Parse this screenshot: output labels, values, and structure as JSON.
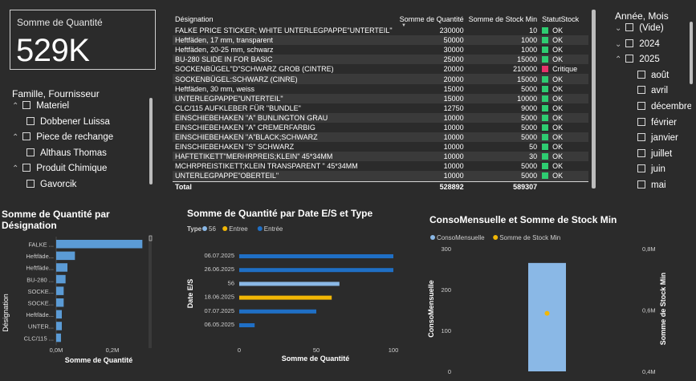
{
  "kpi": {
    "title": "Somme de Quantité",
    "value": "529K"
  },
  "family_slicer": {
    "title": "Famille, Fournisseur",
    "items": [
      {
        "label": "Materiel",
        "level": 0,
        "expanded": true
      },
      {
        "label": "Dobbener Luissa",
        "level": 1
      },
      {
        "label": "Piece de rechange",
        "level": 0,
        "expanded": true
      },
      {
        "label": "Althaus Thomas",
        "level": 1
      },
      {
        "label": "Produit Chimique",
        "level": 0,
        "expanded": true
      },
      {
        "label": "Gavorcik",
        "level": 1
      }
    ]
  },
  "table": {
    "headers": [
      "Désignation",
      "Somme de Quantité",
      "Somme de Stock Min",
      "StatutStock"
    ],
    "rows": [
      [
        "FALKE PRICE STICKER; WHITE UNTERLEGPAPPE\"UNTERTEIL\"",
        "230000",
        "10",
        "OK"
      ],
      [
        "Heftfäden, 17 mm, transparent",
        "50000",
        "1000",
        "OK"
      ],
      [
        "Heftfäden, 20-25 mm, schwarz",
        "30000",
        "1000",
        "OK"
      ],
      [
        "BU-280 SLIDE IN FOR BASIC",
        "25000",
        "15000",
        "OK"
      ],
      [
        "SOCKENBÜGEL\"D\"SCHWARZ GROB (CINTRE)",
        "20000",
        "210000",
        "Critique"
      ],
      [
        "SOCKENBÜGEL:SCHWARZ (CINRE)",
        "20000",
        "15000",
        "OK"
      ],
      [
        "Heftfäden, 30 mm, weiss",
        "15000",
        "5000",
        "OK"
      ],
      [
        "UNTERLEGPAPPE\"UNTERTEIL\"",
        "15000",
        "10000",
        "OK"
      ],
      [
        "CLC/115 AUFKLEBER FÜR \"BUNDLE\"",
        "12750",
        "9000",
        "OK"
      ],
      [
        "EINSCHIEBEHAKEN \"A\" BUNLINGTON GRAU",
        "10000",
        "5000",
        "OK"
      ],
      [
        "EINSCHIEBEHAKEN \"A\" CREMERFARBIG",
        "10000",
        "5000",
        "OK"
      ],
      [
        "EINSCHIEBEHAKEN \"A\"BLACK;SCHWARZ",
        "10000",
        "5000",
        "OK"
      ],
      [
        "EINSCHIEBEHAKEN \"S\" SCHWARZ",
        "10000",
        "50",
        "OK"
      ],
      [
        "HAFTETIKETT\"MERHRPREIS;KLEIN\" 45*34MM",
        "10000",
        "30",
        "OK"
      ],
      [
        "MCHRPREISTIKETT;KLEIN TRANSPARENT \" 45*34MM",
        "10000",
        "5000",
        "OK"
      ],
      [
        "UNTERLEGPAPPE\"OBERTEIL\"",
        "10000",
        "5000",
        "OK"
      ]
    ],
    "total": [
      "Total",
      "528892",
      "589307",
      ""
    ],
    "colors": {
      "ok": "#2ecc71",
      "critique": "#e8326a"
    }
  },
  "date_slicer": {
    "title": "Année, Mois",
    "items": [
      {
        "label": "(Vide)",
        "level": 0,
        "expanded": false
      },
      {
        "label": "2024",
        "level": 0,
        "expanded": false
      },
      {
        "label": "2025",
        "level": 0,
        "expanded": true
      },
      {
        "label": "août",
        "level": 1
      },
      {
        "label": "avril",
        "level": 1
      },
      {
        "label": "décembre",
        "level": 1
      },
      {
        "label": "février",
        "level": 1
      },
      {
        "label": "janvier",
        "level": 1
      },
      {
        "label": "juillet",
        "level": 1
      },
      {
        "label": "juin",
        "level": 1
      },
      {
        "label": "mai",
        "level": 1
      }
    ]
  },
  "charts": {
    "designation": {
      "title_line1": "Somme de Quantité par",
      "title_line2": "Désignation",
      "ylabel": "Désignation",
      "xlabel": "Somme de Quantité",
      "ticks": [
        "0,0M",
        "0,2M"
      ]
    },
    "date_type": {
      "title": "Somme de Quantité par Date E/S et Type",
      "legend_title": "Type",
      "ylabel": "Date E/S",
      "xlabel": "Somme de Quantité",
      "ticks": [
        "0",
        "50",
        "100"
      ]
    },
    "conso": {
      "title": "ConsoMensuelle et Somme de Stock Min",
      "ylabel": "ConsoMensuelle",
      "y2label": "Somme de Stock Min",
      "ticks_left": [
        "300",
        "200",
        "100",
        "0"
      ],
      "ticks_right": [
        "0,8M",
        "0,6M",
        "0,4M"
      ]
    }
  },
  "chart_data": [
    {
      "type": "bar",
      "orientation": "horizontal",
      "title": "Somme de Quantité par Désignation",
      "categories": [
        "FALKE ...",
        "Heftfäde...",
        "Heftfäde...",
        "BU-280 ...",
        "SOCKE...",
        "SOCKE...",
        "Heftfäde...",
        "UNTER...",
        "CLC/115 ..."
      ],
      "values": [
        230000,
        50000,
        30000,
        25000,
        20000,
        20000,
        15000,
        15000,
        12750
      ],
      "xlim": [
        0,
        300000
      ],
      "color": "#5b9bd5"
    },
    {
      "type": "bar",
      "orientation": "horizontal",
      "title": "Somme de Quantité par Date E/S et Type",
      "categories": [
        "06.07.2025",
        "26.06.2025",
        "56",
        "18.06.2025",
        "07.07.2025",
        "06.05.2025"
      ],
      "legend": [
        {
          "name": "56",
          "color": "#8ab8e6"
        },
        {
          "name": "Entree",
          "color": "#f2b705"
        },
        {
          "name": "Entrée",
          "color": "#1f6fc5"
        }
      ],
      "bars": [
        {
          "category": "06.07.2025",
          "series": "Entrée",
          "value": 100
        },
        {
          "category": "26.06.2025",
          "series": "Entrée",
          "value": 100
        },
        {
          "category": "56",
          "series": "56",
          "value": 65
        },
        {
          "category": "18.06.2025",
          "series": "Entree",
          "value": 60
        },
        {
          "category": "07.07.2025",
          "series": "Entrée",
          "value": 50
        },
        {
          "category": "06.05.2025",
          "series": "Entrée",
          "value": 10
        }
      ],
      "xlim": [
        0,
        100
      ]
    },
    {
      "type": "bar",
      "title": "ConsoMensuelle et Somme de Stock Min",
      "legend": [
        {
          "name": "ConsoMensuelle",
          "color": "#8ab8e6"
        },
        {
          "name": "Somme de Stock Min",
          "color": "#f2b705"
        }
      ],
      "series": [
        {
          "name": "ConsoMensuelle",
          "values": [
            265
          ],
          "ylim": [
            0,
            300
          ]
        },
        {
          "name": "Somme de Stock Min",
          "values": [
            589307
          ],
          "ylim": [
            400000,
            800000
          ]
        }
      ]
    }
  ]
}
